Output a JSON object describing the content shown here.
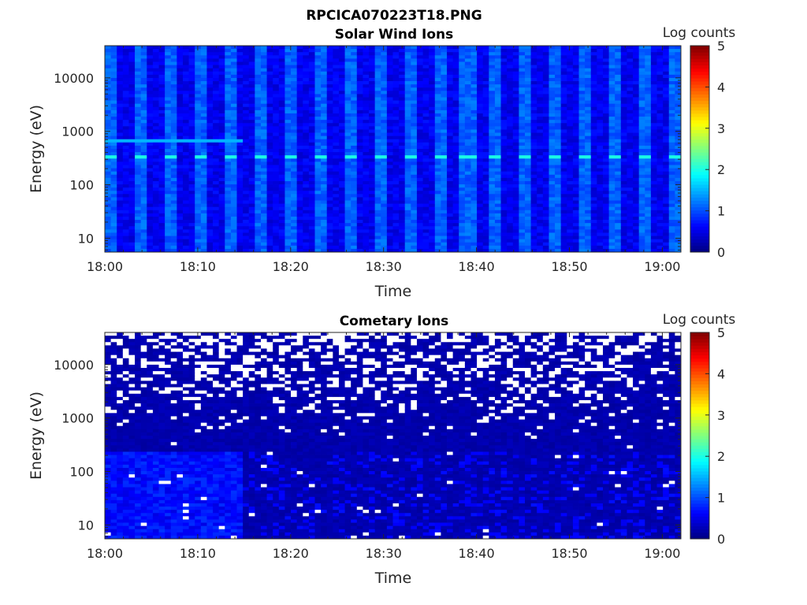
{
  "figure": {
    "title": "RPCICA070223T18.PNG"
  },
  "colorscale": {
    "label": "Log counts",
    "range": [
      0,
      5
    ],
    "ticks": [
      "0",
      "1",
      "2",
      "3",
      "4",
      "5"
    ],
    "colormap": "jet",
    "missing_color": "#ffffff"
  },
  "chart_data": [
    {
      "type": "heatmap",
      "title": "Solar Wind Ions",
      "xlabel": "Time",
      "ylabel": "Energy (eV)",
      "x_ticks": [
        "18:00",
        "18:10",
        "18:20",
        "18:30",
        "18:40",
        "18:50",
        "19:00"
      ],
      "x_range": [
        "18:00",
        "19:02"
      ],
      "y_scale": "log",
      "y_range": [
        5.5,
        40000
      ],
      "y_ticks": [
        "10",
        "100",
        "1000",
        "10000"
      ],
      "z_range": [
        0,
        5
      ],
      "description_values": {
        "background_log_counts": 0.7,
        "periodic_bright_columns_log_counts": 1.1,
        "band_energy_eV": 330,
        "band_log_counts": 2.0,
        "faint_band_energy_eV": 650,
        "faint_band_log_counts": 1.5
      }
    },
    {
      "type": "heatmap",
      "title": "Cometary Ions",
      "xlabel": "Time",
      "ylabel": "Energy (eV)",
      "x_ticks": [
        "18:00",
        "18:10",
        "18:20",
        "18:30",
        "18:40",
        "18:50",
        "19:00"
      ],
      "x_range": [
        "18:00",
        "19:02"
      ],
      "y_scale": "log",
      "y_range": [
        5.5,
        40000
      ],
      "y_ticks": [
        "10",
        "100",
        "1000",
        "10000"
      ],
      "z_range": [
        0,
        5
      ],
      "description_values": {
        "background_log_counts": 0.15,
        "low_energy_early_log_counts": 0.8,
        "empty_bins_above_eV": 300
      }
    }
  ]
}
